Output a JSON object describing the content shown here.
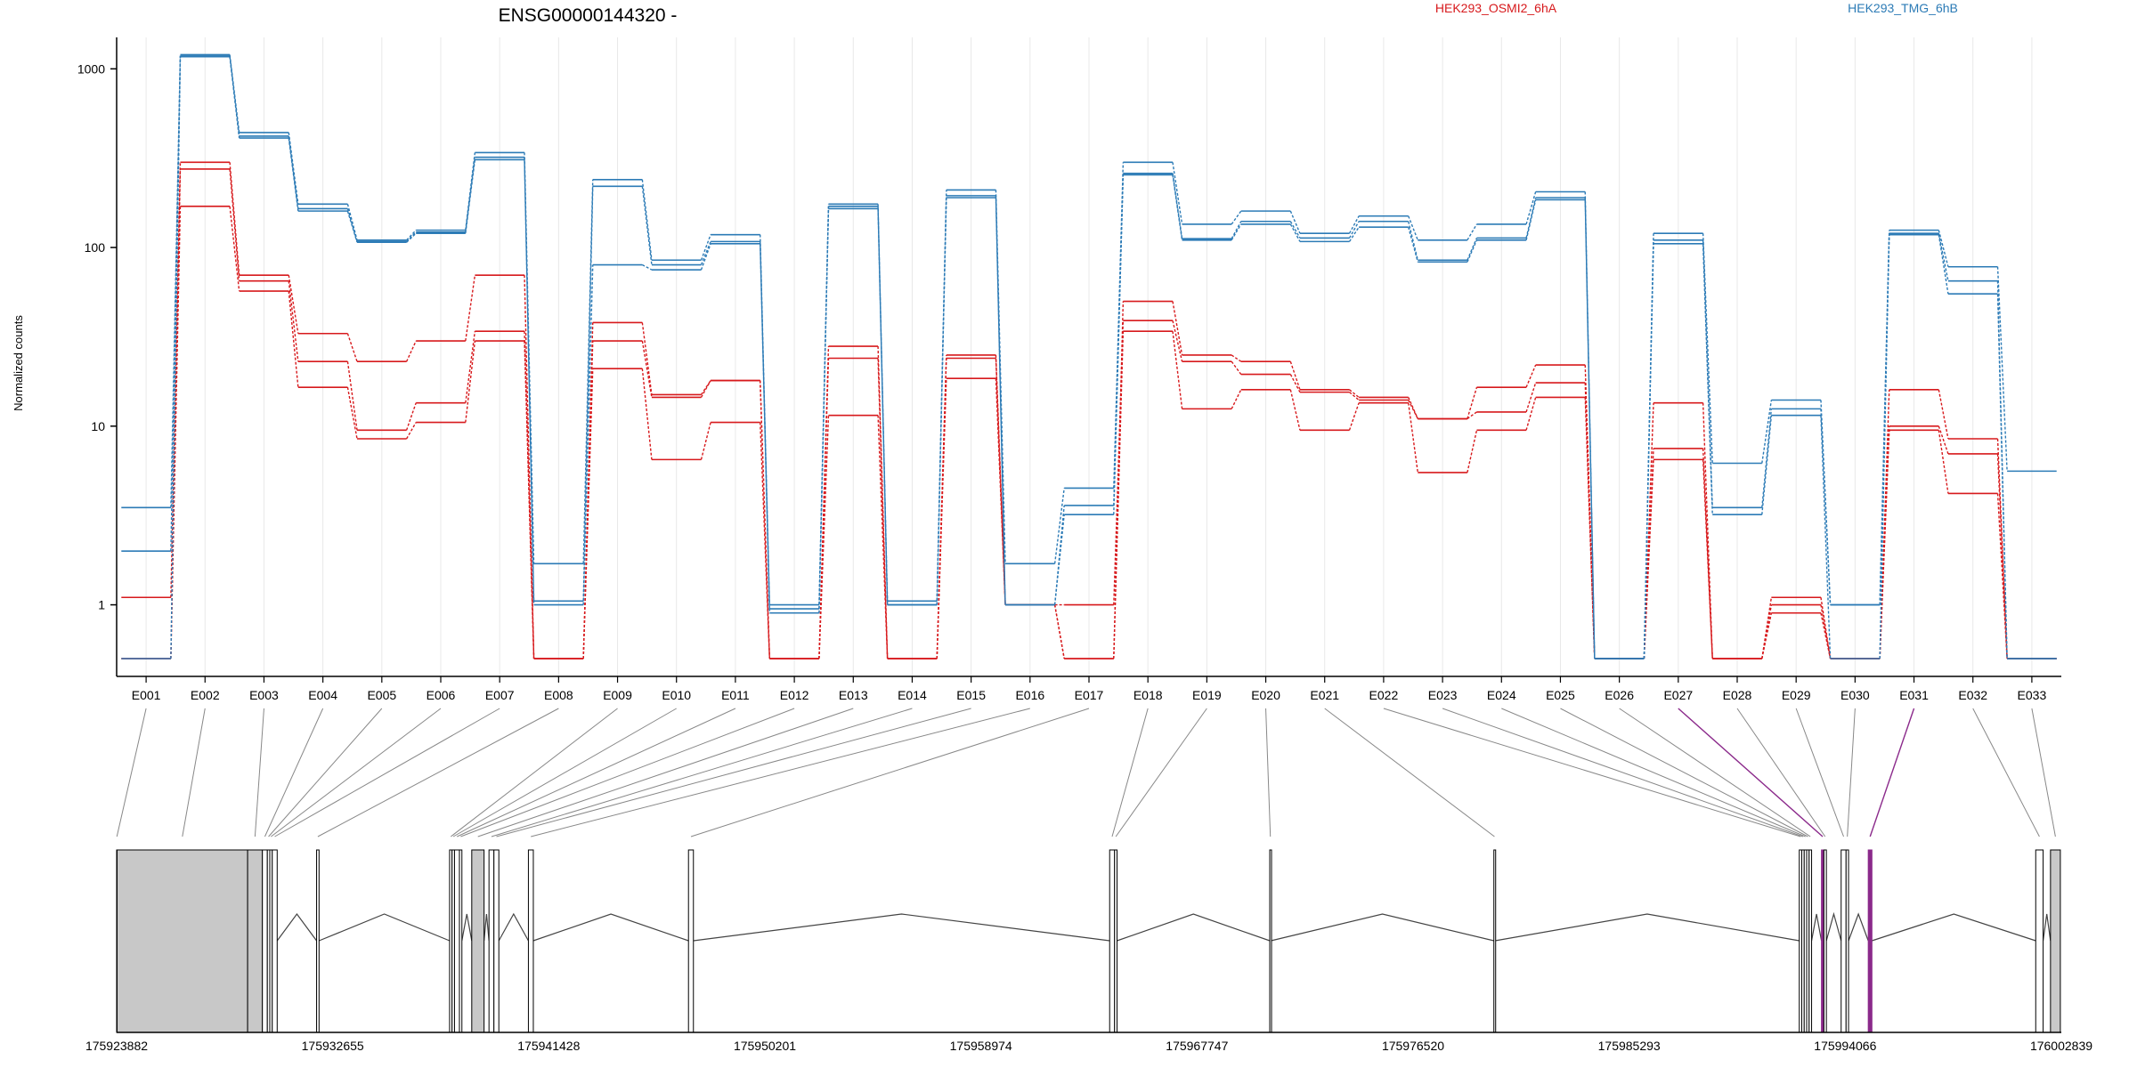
{
  "title": "ENSG00000144320 -",
  "legend": [
    {
      "name": "HEK293_OSMI2_6hA",
      "color": "#d7191c"
    },
    {
      "name": "HEK293_TMG_6hB",
      "color": "#2c7bb6"
    }
  ],
  "colors": {
    "red": "#d7191c",
    "blue": "#2c7bb6",
    "grid": "#e8e8e8",
    "exon_fill": "#c8c8c8",
    "highlight": "#8b2a8b"
  },
  "chart_data": {
    "type": "line",
    "ylabel": "Normalized counts",
    "yscale": "log",
    "ylim": [
      0.5,
      1500
    ],
    "yticks": [
      1,
      10,
      100,
      1000
    ],
    "ytick_labels": [
      "1",
      "10",
      "100",
      "1000"
    ],
    "categories": [
      "E001",
      "E002",
      "E003",
      "E004",
      "E005",
      "E006",
      "E007",
      "E008",
      "E009",
      "E010",
      "E011",
      "E012",
      "E013",
      "E014",
      "E015",
      "E016",
      "E017",
      "E018",
      "E019",
      "E020",
      "E021",
      "E022",
      "E023",
      "E024",
      "E025",
      "E026",
      "E027",
      "E028",
      "E029",
      "E030",
      "E031",
      "E032",
      "E033"
    ],
    "series": [
      {
        "group": "HEK293_OSMI2_6hA",
        "values": [
          1.1,
          300,
          70,
          33,
          23,
          30,
          70,
          0.5,
          38,
          15,
          18,
          0.5,
          28,
          0.5,
          25,
          1.0,
          0.5,
          50,
          25,
          23,
          16,
          14.5,
          11,
          16.5,
          22,
          0.5,
          13.5,
          0.5,
          1.1,
          0.5,
          16,
          8.5,
          0.5
        ]
      },
      {
        "group": "HEK293_OSMI2_6hA",
        "values": [
          0.5,
          275,
          65,
          23,
          9.5,
          13.5,
          34,
          0.5,
          30,
          14.5,
          18,
          0.5,
          24,
          0.5,
          24,
          1.0,
          1.0,
          39,
          23,
          19.5,
          15.5,
          14,
          11,
          12,
          17.5,
          0.5,
          7.5,
          0.5,
          1.0,
          0.5,
          10,
          7,
          0.5
        ]
      },
      {
        "group": "HEK293_OSMI2_6hA",
        "values": [
          0.5,
          170,
          57,
          16.5,
          8.5,
          10.5,
          30,
          0.5,
          21,
          6.5,
          10.5,
          0.5,
          11.5,
          0.5,
          18.5,
          1.0,
          0.5,
          34,
          12.5,
          16,
          9.5,
          13.5,
          5.5,
          9.5,
          14.5,
          0.5,
          6.5,
          0.5,
          0.9,
          0.5,
          9.5,
          4.2,
          0.5
        ]
      },
      {
        "group": "HEK293_TMG_6hB",
        "values": [
          3.5,
          1200,
          440,
          175,
          110,
          125,
          340,
          1.7,
          240,
          85,
          118,
          1.0,
          175,
          1.05,
          210,
          1.7,
          4.5,
          300,
          135,
          160,
          120,
          150,
          110,
          135,
          205,
          0.5,
          120,
          6.2,
          14,
          1.0,
          125,
          78,
          5.6
        ]
      },
      {
        "group": "HEK293_TMG_6hB",
        "values": [
          2.0,
          1180,
          420,
          165,
          108,
          122,
          320,
          1.05,
          220,
          80,
          108,
          0.95,
          170,
          1.0,
          195,
          1.0,
          3.6,
          260,
          112,
          140,
          113,
          140,
          85,
          113,
          190,
          0.5,
          110,
          3.5,
          12.5,
          1.0,
          120,
          65,
          0.5
        ]
      },
      {
        "group": "HEK293_TMG_6hB",
        "values": [
          0.5,
          1170,
          410,
          160,
          107,
          120,
          310,
          1.0,
          80,
          75,
          105,
          0.9,
          165,
          1.0,
          190,
          1.0,
          3.2,
          255,
          110,
          135,
          108,
          130,
          83,
          110,
          185,
          0.5,
          105,
          3.2,
          11.5,
          0.5,
          118,
          55,
          0.5
        ]
      }
    ]
  },
  "gene_model": {
    "coordinate_range": [
      175923882,
      176002839
    ],
    "coord_ticks": [
      "175923882",
      "175932655",
      "175941428",
      "175950201",
      "175958974",
      "175967747",
      "175976520",
      "175985293",
      "175994066",
      "176002839"
    ],
    "exons": [
      {
        "id": "E001",
        "start": 175923882,
        "end": 175923900
      },
      {
        "id": "E002",
        "start": 175923900,
        "end": 175929200
      },
      {
        "id": "E003",
        "start": 175929200,
        "end": 175929800
      },
      {
        "id": "E004",
        "start": 175929800,
        "end": 175930000
      },
      {
        "id": "E005",
        "start": 175930000,
        "end": 175930100
      },
      {
        "id": "E006",
        "start": 175930100,
        "end": 175930200
      },
      {
        "id": "E007",
        "start": 175930200,
        "end": 175930400
      },
      {
        "id": "E008",
        "start": 175932000,
        "end": 175932100
      },
      {
        "id": "E009",
        "start": 175937400,
        "end": 175937500
      },
      {
        "id": "E010",
        "start": 175937500,
        "end": 175937600
      },
      {
        "id": "E011",
        "start": 175937600,
        "end": 175937800
      },
      {
        "id": "E012",
        "start": 175937800,
        "end": 175937900
      },
      {
        "id": "E013",
        "start": 175938300,
        "end": 175938800
      },
      {
        "id": "E014",
        "start": 175939000,
        "end": 175939200
      },
      {
        "id": "E015",
        "start": 175939200,
        "end": 175939400
      },
      {
        "id": "E016",
        "start": 175940600,
        "end": 175940800
      },
      {
        "id": "E017",
        "start": 175947100,
        "end": 175947300
      },
      {
        "id": "E018",
        "start": 175964200,
        "end": 175964400
      },
      {
        "id": "E019",
        "start": 175964400,
        "end": 175964500
      },
      {
        "id": "E020",
        "start": 175970700,
        "end": 175970750
      },
      {
        "id": "E021",
        "start": 175979800,
        "end": 175979850
      },
      {
        "id": "E022",
        "start": 175992200,
        "end": 175992300
      },
      {
        "id": "E023",
        "start": 175992300,
        "end": 175992400
      },
      {
        "id": "E024",
        "start": 175992400,
        "end": 175992500
      },
      {
        "id": "E025",
        "start": 175992500,
        "end": 175992600
      },
      {
        "id": "E026",
        "start": 175992600,
        "end": 175992700
      },
      {
        "id": "E027",
        "start": 175993100,
        "end": 175993200
      },
      {
        "id": "E028",
        "start": 175993200,
        "end": 175993300
      },
      {
        "id": "E029",
        "start": 175993900,
        "end": 175994100
      },
      {
        "id": "E030",
        "start": 175994100,
        "end": 175994200
      },
      {
        "id": "E031",
        "start": 175995000,
        "end": 175995150
      },
      {
        "id": "E032",
        "start": 176001800,
        "end": 176002100
      },
      {
        "id": "E033",
        "start": 176002400,
        "end": 176002800
      }
    ],
    "highlight_exons": [
      "E027",
      "E031"
    ]
  }
}
